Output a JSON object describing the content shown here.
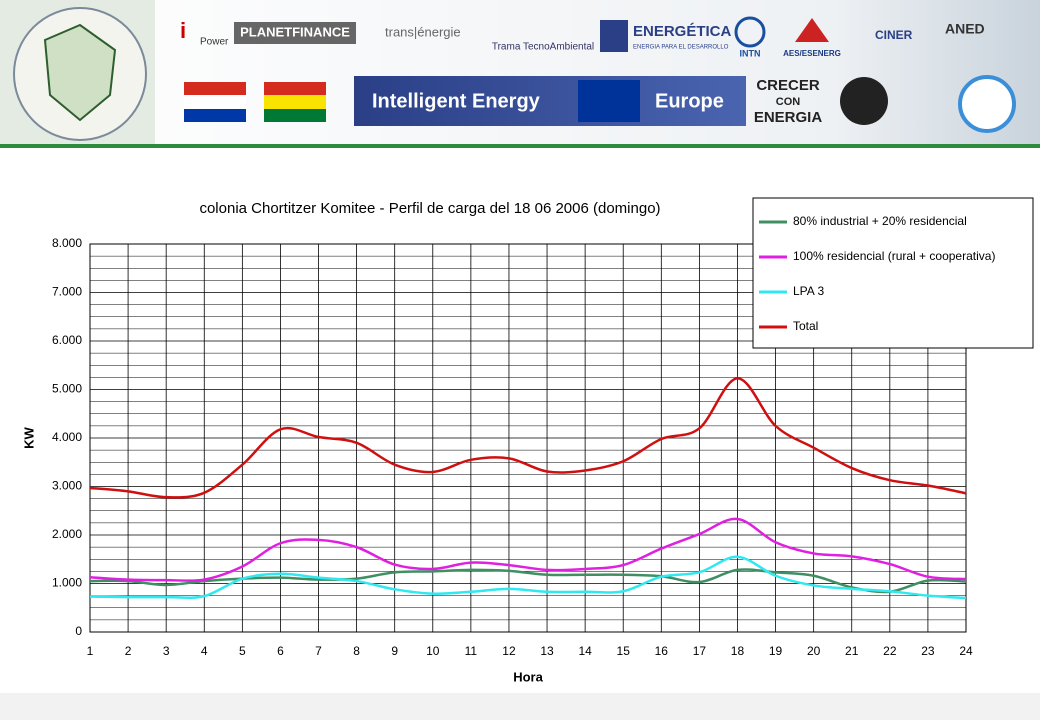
{
  "banner": {
    "logos": [
      "Power",
      "PLANETFINANCE",
      "trans|énergie",
      "Trama TecnoAmbiental",
      "ENERGÉTICA",
      "ENERGIA PARA EL DESARROLLO",
      "INTN",
      "AES/ESENERG",
      "CINER",
      "ANED"
    ],
    "programme": [
      "Intelligent Energy",
      "Europe"
    ],
    "slogan": [
      "CRECER",
      "CON",
      "ENERGIA"
    ]
  },
  "chart_data": {
    "type": "line",
    "title": "colonia Chortitzer Komitee - Perfil de carga  del 18 06 2006  (domingo)",
    "x_label": "Hora",
    "y_label": "KW",
    "x": [
      1,
      2,
      3,
      4,
      5,
      6,
      7,
      8,
      9,
      10,
      11,
      12,
      13,
      14,
      15,
      16,
      17,
      18,
      19,
      20,
      21,
      22,
      23,
      24
    ],
    "xlim": [
      1,
      24
    ],
    "xticks": [
      1,
      2,
      3,
      4,
      5,
      6,
      7,
      8,
      9,
      10,
      11,
      12,
      13,
      14,
      15,
      16,
      17,
      18,
      19,
      20,
      21,
      22,
      23,
      24
    ],
    "ylim": [
      0,
      8000
    ],
    "yticks": [
      0,
      {
        "value": 1000,
        "label": "1.000"
      },
      {
        "value": 2000,
        "label": "2.000"
      },
      {
        "value": 3000,
        "label": "3.000"
      },
      {
        "value": 4000,
        "label": "4.000"
      },
      {
        "value": 5000,
        "label": "5.000"
      },
      {
        "value": 6000,
        "label": "6.000"
      },
      {
        "value": 7000,
        "label": "7.000"
      },
      {
        "value": 8000,
        "label": "8.000"
      }
    ],
    "minor_yticks": [
      250,
      500,
      750,
      1250,
      1500,
      1750,
      2250,
      2500,
      2750,
      3250,
      3500,
      3750,
      4250,
      4500,
      4750,
      5250,
      5500,
      5750,
      6250,
      6500,
      6750,
      7250,
      7500,
      7750
    ],
    "grid": true,
    "legend": "top-right",
    "series": [
      {
        "name": "80% industrial + 20% residencial",
        "color": "#3f8f63",
        "values": [
          1050,
          1050,
          970,
          1050,
          1100,
          1120,
          1080,
          1100,
          1230,
          1250,
          1280,
          1260,
          1180,
          1180,
          1180,
          1150,
          1030,
          1280,
          1230,
          1160,
          920,
          830,
          1060,
          1040
        ]
      },
      {
        "name": "100% residencial  (rural + cooperativa)",
        "color": "#e020e0",
        "values": [
          1130,
          1080,
          1070,
          1080,
          1350,
          1830,
          1900,
          1750,
          1390,
          1300,
          1430,
          1380,
          1280,
          1300,
          1380,
          1720,
          2020,
          2330,
          1850,
          1620,
          1560,
          1400,
          1140,
          1090
        ]
      },
      {
        "name": "LPA 3",
        "color": "#30e8f0",
        "values": [
          730,
          720,
          720,
          740,
          1100,
          1200,
          1120,
          1050,
          880,
          790,
          830,
          890,
          830,
          830,
          840,
          1140,
          1230,
          1550,
          1160,
          960,
          890,
          840,
          750,
          700
        ]
      },
      {
        "name": "Total",
        "color": "#d01010",
        "values": [
          2970,
          2900,
          2780,
          2870,
          3450,
          4180,
          4020,
          3900,
          3450,
          3300,
          3550,
          3580,
          3310,
          3330,
          3520,
          3980,
          4200,
          5230,
          4250,
          3800,
          3380,
          3130,
          3020,
          2860
        ]
      }
    ]
  }
}
